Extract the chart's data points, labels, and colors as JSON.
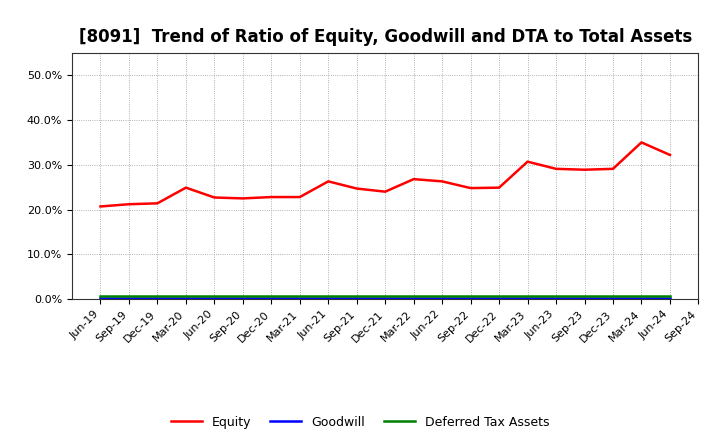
{
  "title": "[8091]  Trend of Ratio of Equity, Goodwill and DTA to Total Assets",
  "x_labels": [
    "Jun-19",
    "Sep-19",
    "Dec-19",
    "Mar-20",
    "Jun-20",
    "Sep-20",
    "Dec-20",
    "Mar-21",
    "Jun-21",
    "Sep-21",
    "Dec-21",
    "Mar-22",
    "Jun-22",
    "Sep-22",
    "Dec-22",
    "Mar-23",
    "Jun-23",
    "Sep-23",
    "Dec-23",
    "Mar-24",
    "Jun-24",
    "Sep-24"
  ],
  "equity": [
    0.207,
    0.212,
    0.214,
    0.249,
    0.227,
    0.225,
    0.228,
    0.228,
    0.263,
    0.247,
    0.24,
    0.268,
    0.263,
    0.248,
    0.249,
    0.307,
    0.291,
    0.289,
    0.291,
    0.35,
    0.322,
    null
  ],
  "goodwill": [
    0.002,
    0.002,
    0.002,
    0.002,
    0.002,
    0.002,
    0.002,
    0.002,
    0.002,
    0.002,
    0.002,
    0.002,
    0.002,
    0.002,
    0.002,
    0.002,
    0.002,
    0.002,
    0.002,
    0.002,
    0.002,
    null
  ],
  "dta": [
    0.007,
    0.007,
    0.007,
    0.007,
    0.007,
    0.007,
    0.007,
    0.007,
    0.007,
    0.007,
    0.007,
    0.007,
    0.007,
    0.007,
    0.007,
    0.007,
    0.007,
    0.007,
    0.007,
    0.007,
    0.007,
    null
  ],
  "equity_color": "#FF0000",
  "goodwill_color": "#0000FF",
  "dta_color": "#008000",
  "ylim": [
    0.0,
    0.55
  ],
  "yticks": [
    0.0,
    0.1,
    0.2,
    0.3,
    0.4,
    0.5
  ],
  "background_color": "#FFFFFF",
  "plot_bg_color": "#FFFFFF",
  "grid_color": "#999999",
  "title_fontsize": 12,
  "tick_fontsize": 8,
  "legend_labels": [
    "Equity",
    "Goodwill",
    "Deferred Tax Assets"
  ],
  "line_width": 1.8
}
